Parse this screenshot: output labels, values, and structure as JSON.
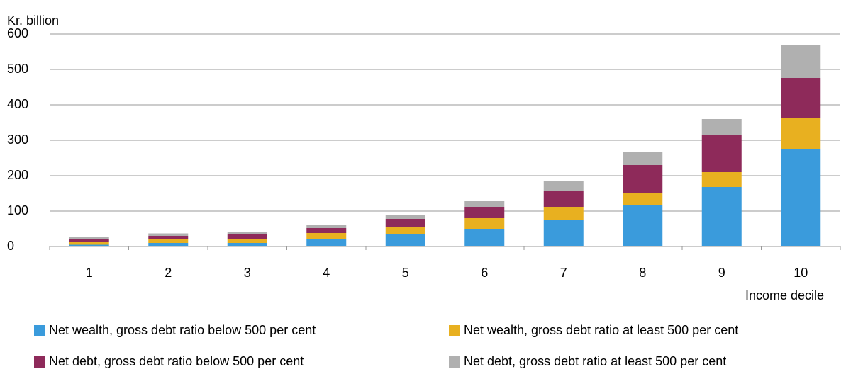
{
  "chart_data": {
    "type": "stacked_bar",
    "y_label": "Kr. billion",
    "x_label": "Income decile",
    "categories": [
      "1",
      "2",
      "3",
      "4",
      "5",
      "6",
      "7",
      "8",
      "9",
      "10"
    ],
    "series": [
      {
        "name": "Net wealth, gross debt ratio below 500 per cent",
        "color": "#3a9bdc",
        "values": [
          5,
          10,
          10,
          22,
          34,
          50,
          74,
          116,
          168,
          276
        ]
      },
      {
        "name": "Net wealth, gross debt ratio at least 500 per cent",
        "color": "#e8b020",
        "values": [
          8,
          10,
          10,
          16,
          22,
          30,
          38,
          36,
          42,
          88
        ]
      },
      {
        "name": "Net debt, gross debt ratio below 500 per cent",
        "color": "#8e2a5a",
        "values": [
          9,
          10,
          14,
          14,
          22,
          32,
          46,
          78,
          106,
          112
        ]
      },
      {
        "name": "Net debt, gross debt ratio at least 500 per cent",
        "color": "#b0b0b0",
        "values": [
          4,
          7,
          6,
          8,
          12,
          16,
          26,
          38,
          44,
          92
        ]
      }
    ],
    "ylim": [
      0,
      600
    ],
    "yticks": [
      0,
      100,
      200,
      300,
      400,
      500,
      600
    ],
    "grid": true
  }
}
